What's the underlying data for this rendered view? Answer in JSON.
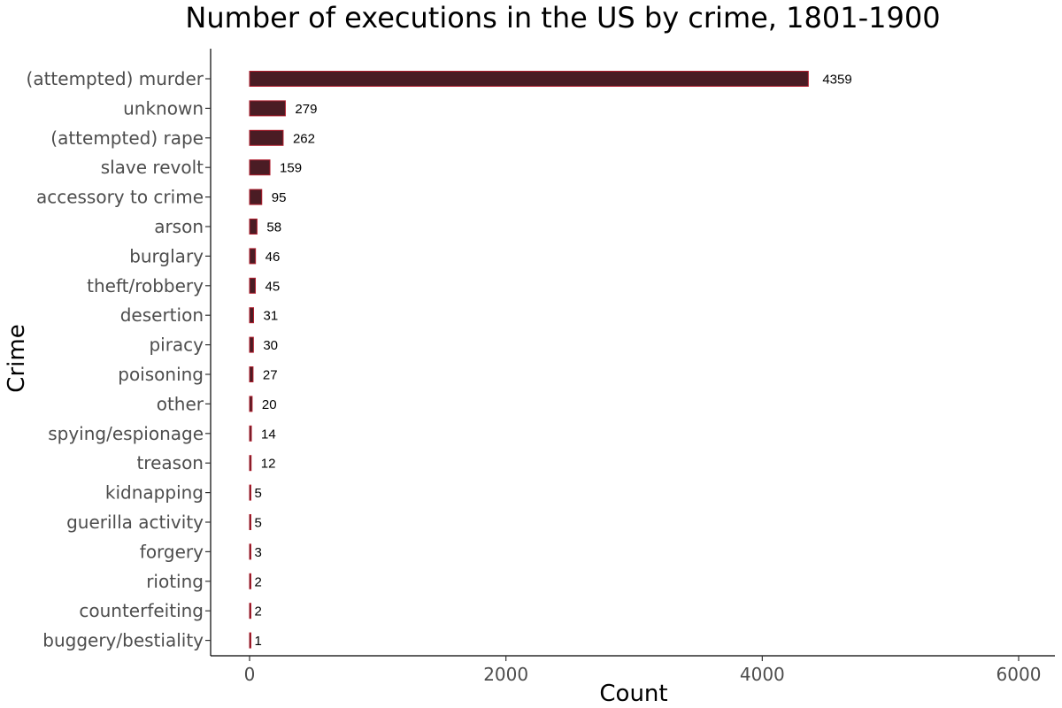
{
  "chart_data": {
    "type": "bar",
    "orientation": "horizontal",
    "title": "Number of executions in the US by crime, 1801-1900",
    "xlabel": "Count",
    "ylabel": "Crime",
    "xlim": [
      -150,
      6300
    ],
    "xticks": [
      0,
      2000,
      4000,
      6000
    ],
    "grid": false,
    "legend": "none",
    "bar_color": "#4a1c24",
    "bar_outline": "#b01c2c",
    "categories": [
      "(attempted) murder",
      "unknown",
      "(attempted) rape",
      "slave revolt",
      "accessory to crime",
      "arson",
      "burglary",
      "theft/robbery",
      "desertion",
      "piracy",
      "poisoning",
      "other",
      "spying/espionage",
      "treason",
      "kidnapping",
      "guerilla activity",
      "forgery",
      "rioting",
      "counterfeiting",
      "buggery/bestiality"
    ],
    "values": [
      4359,
      279,
      262,
      159,
      95,
      58,
      46,
      45,
      31,
      30,
      27,
      20,
      14,
      12,
      5,
      5,
      3,
      2,
      2,
      1
    ]
  }
}
